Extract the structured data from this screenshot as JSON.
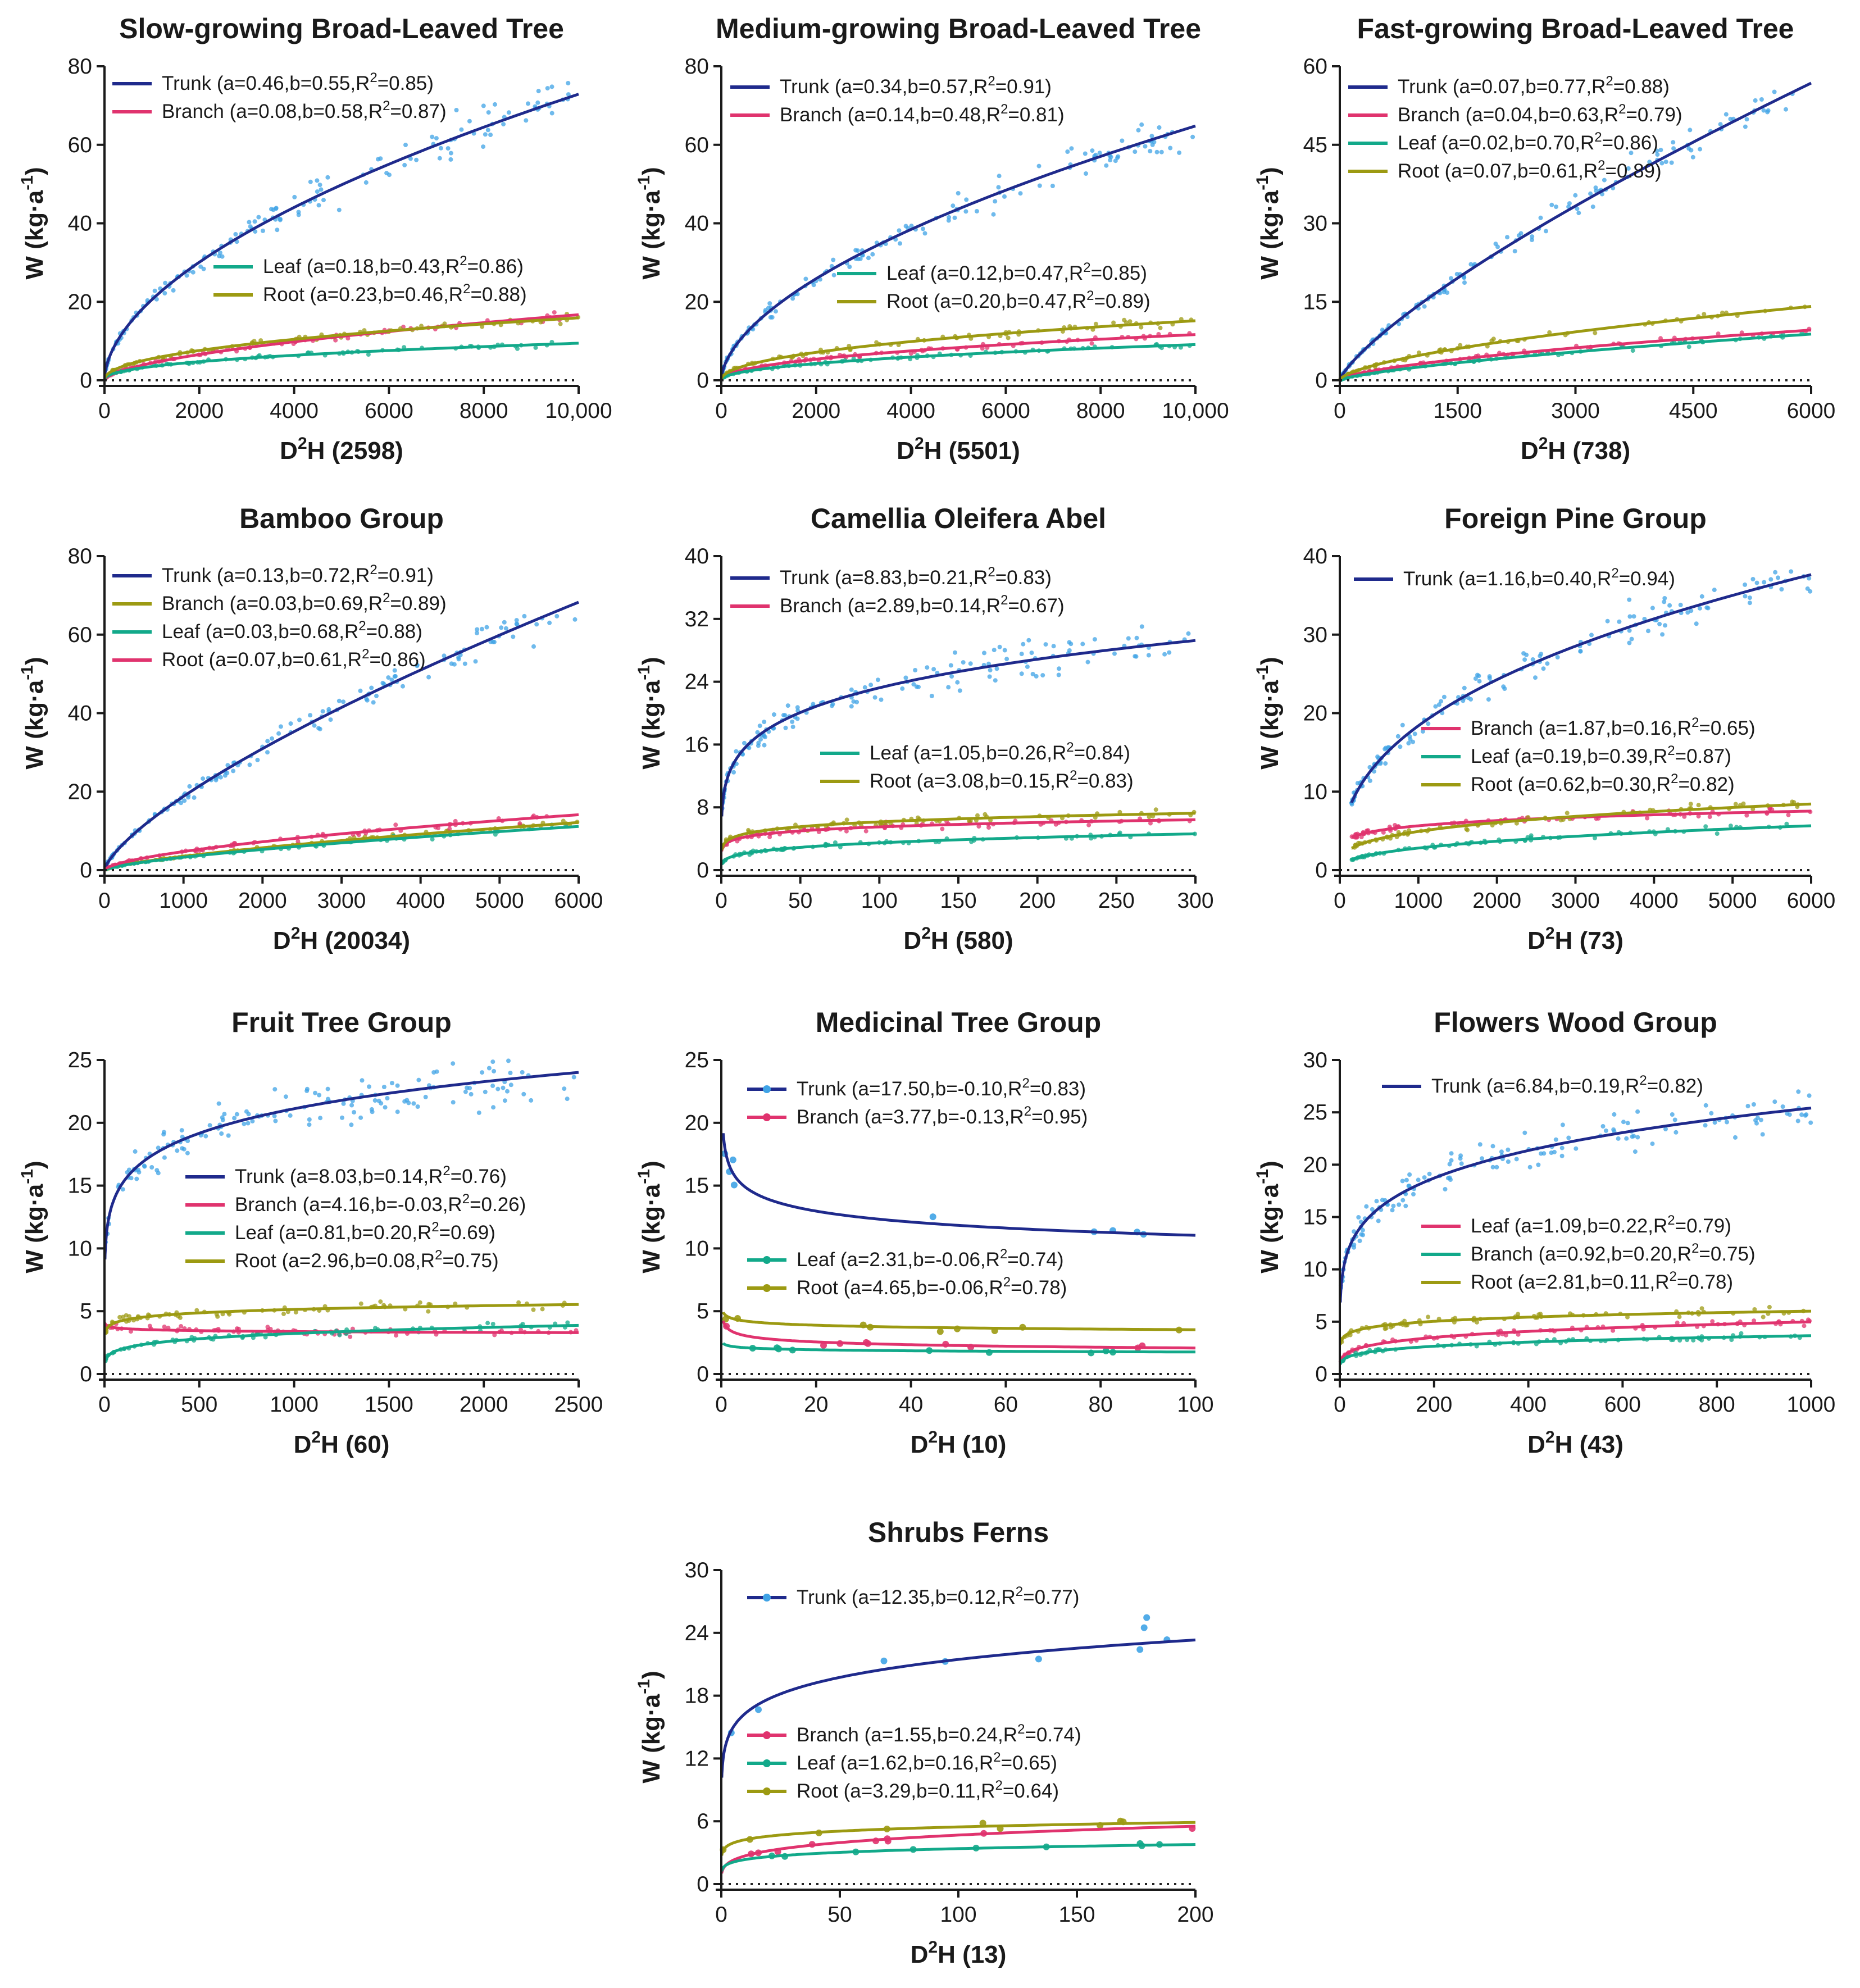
{
  "colors": {
    "trunk": "#1f2a8c",
    "trunk_points": "#3fa3e6",
    "branch": "#e0336e",
    "leaf": "#12a98a",
    "root": "#9c9a12"
  },
  "chart_data": [
    {
      "type": "scatter",
      "title": "Slow-growing Broad-Leaved Tree",
      "xlabel": "D",
      "xlabel_sup": "2",
      "xlabel_rest": "H (2598)",
      "ylabel": "W (kg·a",
      "ylabel_sup": "-1",
      "ylabel_end": ")",
      "xlim": [
        0,
        10000
      ],
      "ylim": [
        0,
        80
      ],
      "xticks": [
        0,
        2000,
        4000,
        6000,
        8000,
        10000
      ],
      "xtick_labels": [
        "0",
        "2000",
        "4000",
        "6000",
        "8000",
        "10,000"
      ],
      "yticks": [
        0,
        20,
        40,
        60,
        80
      ],
      "ytick_labels": [
        "0",
        "20",
        "40",
        "60",
        "80"
      ],
      "series": [
        {
          "name": "Trunk",
          "key": "trunk",
          "a": 0.46,
          "b": 0.55,
          "r2": 0.85,
          "label": "Trunk (a=0.46,b=0.55,R",
          "r2_text": "=0.85)"
        },
        {
          "name": "Branch",
          "key": "branch",
          "a": 0.08,
          "b": 0.58,
          "r2": 0.87,
          "label": "Branch (a=0.08,b=0.58,R",
          "r2_text": "=0.87)"
        },
        {
          "name": "Leaf",
          "key": "leaf",
          "a": 0.18,
          "b": 0.43,
          "r2": 0.86,
          "label": "Leaf (a=0.18,b=0.43,R",
          "r2_text": "=0.86)"
        },
        {
          "name": "Root",
          "key": "root",
          "a": 0.23,
          "b": 0.46,
          "r2": 0.88,
          "label": "Root (a=0.23,b=0.46,R",
          "r2_text": "=0.88)"
        }
      ]
    },
    {
      "type": "scatter",
      "title": "Medium-growing Broad-Leaved Tree",
      "xlabel": "D",
      "xlabel_sup": "2",
      "xlabel_rest": "H (5501)",
      "ylabel": "W (kg·a",
      "ylabel_sup": "-1",
      "ylabel_end": ")",
      "xlim": [
        0,
        10000
      ],
      "ylim": [
        0,
        80
      ],
      "xticks": [
        0,
        2000,
        4000,
        6000,
        8000,
        10000
      ],
      "xtick_labels": [
        "0",
        "2000",
        "4000",
        "6000",
        "8000",
        "10,000"
      ],
      "yticks": [
        0,
        20,
        40,
        60,
        80
      ],
      "ytick_labels": [
        "0",
        "20",
        "40",
        "60",
        "80"
      ],
      "series": [
        {
          "name": "Trunk",
          "key": "trunk",
          "a": 0.34,
          "b": 0.57,
          "r2": 0.91,
          "label": "Trunk (a=0.34,b=0.57,R",
          "r2_text": "=0.91)"
        },
        {
          "name": "Branch",
          "key": "branch",
          "a": 0.14,
          "b": 0.48,
          "r2": 0.81,
          "label": "Branch (a=0.14,b=0.48,R",
          "r2_text": "=0.81)"
        },
        {
          "name": "Leaf",
          "key": "leaf",
          "a": 0.12,
          "b": 0.47,
          "r2": 0.85,
          "label": "Leaf (a=0.12,b=0.47,R",
          "r2_text": "=0.85)"
        },
        {
          "name": "Root",
          "key": "root",
          "a": 0.2,
          "b": 0.47,
          "r2": 0.89,
          "label": "Root (a=0.20,b=0.47,R",
          "r2_text": "=0.89)"
        }
      ]
    },
    {
      "type": "scatter",
      "title": "Fast-growing Broad-Leaved Tree",
      "xlabel": "D",
      "xlabel_sup": "2",
      "xlabel_rest": "H (738)",
      "ylabel": "W (kg·a",
      "ylabel_sup": "-1",
      "ylabel_end": ")",
      "xlim": [
        0,
        6000
      ],
      "ylim": [
        0,
        60
      ],
      "xticks": [
        0,
        1500,
        3000,
        4500,
        6000
      ],
      "xtick_labels": [
        "0",
        "1500",
        "3000",
        "4500",
        "6000"
      ],
      "yticks": [
        0,
        15,
        30,
        45,
        60
      ],
      "ytick_labels": [
        "0",
        "15",
        "30",
        "45",
        "60"
      ],
      "series": [
        {
          "name": "Trunk",
          "key": "trunk",
          "a": 0.07,
          "b": 0.77,
          "r2": 0.88,
          "label": "Trunk (a=0.07,b=0.77,R",
          "r2_text": "=0.88)"
        },
        {
          "name": "Branch",
          "key": "branch",
          "a": 0.04,
          "b": 0.63,
          "r2": 0.79,
          "label": "Branch (a=0.04,b=0.63,R",
          "r2_text": "=0.79)"
        },
        {
          "name": "Leaf",
          "key": "leaf",
          "a": 0.02,
          "b": 0.7,
          "r2": 0.86,
          "label": "Leaf (a=0.02,b=0.70,R",
          "r2_text": "=0.86)"
        },
        {
          "name": "Root",
          "key": "root",
          "a": 0.07,
          "b": 0.61,
          "r2": 0.89,
          "label": "Root (a=0.07,b=0.61,R",
          "r2_text": "=0.89)"
        }
      ]
    },
    {
      "type": "scatter",
      "title": "Bamboo Group",
      "xlabel": "D",
      "xlabel_sup": "2",
      "xlabel_rest": "H (20034)",
      "ylabel": "W (kg·a",
      "ylabel_sup": "-1",
      "ylabel_end": ")",
      "xlim": [
        0,
        6000
      ],
      "ylim": [
        0,
        80
      ],
      "xticks": [
        0,
        1000,
        2000,
        3000,
        4000,
        5000,
        6000
      ],
      "xtick_labels": [
        "0",
        "1000",
        "2000",
        "3000",
        "4000",
        "5000",
        "6000"
      ],
      "yticks": [
        0,
        20,
        40,
        60,
        80
      ],
      "ytick_labels": [
        "0",
        "20",
        "40",
        "60",
        "80"
      ],
      "series": [
        {
          "name": "Trunk",
          "key": "trunk",
          "a": 0.13,
          "b": 0.72,
          "r2": 0.91,
          "label": "Trunk (a=0.13,b=0.72,R",
          "r2_text": "=0.91)"
        },
        {
          "name": "Branch",
          "key": "root",
          "a": 0.03,
          "b": 0.69,
          "r2": 0.89,
          "label": "Branch (a=0.03,b=0.69,R",
          "r2_text": "=0.89)"
        },
        {
          "name": "Leaf",
          "key": "leaf",
          "a": 0.03,
          "b": 0.68,
          "r2": 0.88,
          "label": "Leaf (a=0.03,b=0.68,R",
          "r2_text": "=0.88)"
        },
        {
          "name": "Root",
          "key": "branch",
          "a": 0.07,
          "b": 0.61,
          "r2": 0.86,
          "label": "Root (a=0.07,b=0.61,R",
          "r2_text": "=0.86)"
        }
      ]
    },
    {
      "type": "scatter",
      "title": "Camellia Oleifera Abel",
      "xlabel": "D",
      "xlabel_sup": "2",
      "xlabel_rest": "H (580)",
      "ylabel": "W (kg·a",
      "ylabel_sup": "-1",
      "ylabel_end": ")",
      "xlim": [
        0,
        300
      ],
      "ylim": [
        0,
        40
      ],
      "xticks": [
        0,
        50,
        100,
        150,
        200,
        250,
        300
      ],
      "xtick_labels": [
        "0",
        "50",
        "100",
        "150",
        "200",
        "250",
        "300"
      ],
      "yticks": [
        0,
        8,
        16,
        24,
        32,
        40
      ],
      "ytick_labels": [
        "0",
        "8",
        "16",
        "24",
        "32",
        "40"
      ],
      "series": [
        {
          "name": "Trunk",
          "key": "trunk",
          "a": 8.83,
          "b": 0.21,
          "r2": 0.83,
          "label": "Trunk (a=8.83,b=0.21,R",
          "r2_text": "=0.83)"
        },
        {
          "name": "Branch",
          "key": "branch",
          "a": 2.89,
          "b": 0.14,
          "r2": 0.67,
          "label": "Branch (a=2.89,b=0.14,R",
          "r2_text": "=0.67)"
        },
        {
          "name": "Leaf",
          "key": "leaf",
          "a": 1.05,
          "b": 0.26,
          "r2": 0.84,
          "label": "Leaf (a=1.05,b=0.26,R",
          "r2_text": "=0.84)"
        },
        {
          "name": "Root",
          "key": "root",
          "a": 3.08,
          "b": 0.15,
          "r2": 0.83,
          "label": "Root (a=3.08,b=0.15,R",
          "r2_text": "=0.83)"
        }
      ]
    },
    {
      "type": "scatter",
      "title": "Foreign Pine Group",
      "xlabel": "D",
      "xlabel_sup": "2",
      "xlabel_rest": "H (73)",
      "ylabel": "W (kg·a",
      "ylabel_sup": "-1",
      "ylabel_end": ")",
      "xlim": [
        0,
        6000
      ],
      "ylim": [
        0,
        40
      ],
      "xmin_data": 150,
      "xticks": [
        0,
        1000,
        2000,
        3000,
        4000,
        5000,
        6000
      ],
      "xtick_labels": [
        "0",
        "1000",
        "2000",
        "3000",
        "4000",
        "5000",
        "6000"
      ],
      "yticks": [
        0,
        10,
        20,
        30,
        40
      ],
      "ytick_labels": [
        "0",
        "10",
        "20",
        "30",
        "40"
      ],
      "series": [
        {
          "name": "Trunk",
          "key": "trunk",
          "a": 1.16,
          "b": 0.4,
          "r2": 0.94,
          "label": "Trunk (a=1.16,b=0.40,R",
          "r2_text": "=0.94)"
        },
        {
          "name": "Branch",
          "key": "branch",
          "a": 1.87,
          "b": 0.16,
          "r2": 0.65,
          "label": "Branch (a=1.87,b=0.16,R",
          "r2_text": "=0.65)"
        },
        {
          "name": "Leaf",
          "key": "leaf",
          "a": 0.19,
          "b": 0.39,
          "r2": 0.87,
          "label": "Leaf (a=0.19,b=0.39,R",
          "r2_text": "=0.87)"
        },
        {
          "name": "Root",
          "key": "root",
          "a": 0.62,
          "b": 0.3,
          "r2": 0.82,
          "label": "Root (a=0.62,b=0.30,R",
          "r2_text": "=0.82)"
        }
      ]
    },
    {
      "type": "scatter",
      "title": "Fruit Tree Group",
      "xlabel": "D",
      "xlabel_sup": "2",
      "xlabel_rest": "H (60)",
      "ylabel": "W (kg·a",
      "ylabel_sup": "-1",
      "ylabel_end": ")",
      "xlim": [
        0,
        2500
      ],
      "ylim": [
        0,
        25
      ],
      "xticks": [
        0,
        500,
        1000,
        1500,
        2000,
        2500
      ],
      "xtick_labels": [
        "0",
        "500",
        "1000",
        "1500",
        "2000",
        "2500"
      ],
      "yticks": [
        0,
        5,
        10,
        15,
        20,
        25
      ],
      "ytick_labels": [
        "0",
        "5",
        "10",
        "15",
        "20",
        "25"
      ],
      "series": [
        {
          "name": "Trunk",
          "key": "trunk",
          "a": 8.03,
          "b": 0.14,
          "r2": 0.76,
          "label": "Trunk (a=8.03,b=0.14,R",
          "r2_text": "=0.76)"
        },
        {
          "name": "Branch",
          "key": "branch",
          "a": 4.16,
          "b": -0.03,
          "r2": 0.26,
          "label": "Branch (a=4.16,b=-0.03,R",
          "r2_text": "=0.26)"
        },
        {
          "name": "Leaf",
          "key": "leaf",
          "a": 0.81,
          "b": 0.2,
          "r2": 0.69,
          "label": "Leaf (a=0.81,b=0.20,R",
          "r2_text": "=0.69)"
        },
        {
          "name": "Root",
          "key": "root",
          "a": 2.96,
          "b": 0.08,
          "r2": 0.75,
          "label": "Root (a=2.96,b=0.08,R",
          "r2_text": "=0.75)"
        }
      ]
    },
    {
      "type": "scatter",
      "title": "Medicinal Tree Group",
      "xlabel": "D",
      "xlabel_sup": "2",
      "xlabel_rest": "H (10)",
      "ylabel": "W (kg·a",
      "ylabel_sup": "-1",
      "ylabel_end": ")",
      "xlim": [
        0,
        100
      ],
      "ylim": [
        0,
        25
      ],
      "xmin_data": 0.4,
      "dot_markers": true,
      "xticks": [
        0,
        20,
        40,
        60,
        80,
        100
      ],
      "xtick_labels": [
        "0",
        "20",
        "40",
        "60",
        "80",
        "100"
      ],
      "yticks": [
        0,
        5,
        10,
        15,
        20,
        25
      ],
      "ytick_labels": [
        "0",
        "5",
        "10",
        "15",
        "20",
        "25"
      ],
      "series": [
        {
          "name": "Trunk",
          "key": "trunk",
          "a": 17.5,
          "b": -0.1,
          "r2": 0.83,
          "label": "Trunk (a=17.50,b=-0.10,R",
          "r2_text": "=0.83)"
        },
        {
          "name": "Branch",
          "key": "branch",
          "a": 3.77,
          "b": -0.13,
          "r2": 0.95,
          "label": "Branch (a=3.77,b=-0.13,R",
          "r2_text": "=0.95)"
        },
        {
          "name": "Leaf",
          "key": "leaf",
          "a": 2.31,
          "b": -0.06,
          "r2": 0.74,
          "label": "Leaf (a=2.31,b=-0.06,R",
          "r2_text": "=0.74)"
        },
        {
          "name": "Root",
          "key": "root",
          "a": 4.65,
          "b": -0.06,
          "r2": 0.78,
          "label": "Root (a=4.65,b=-0.06,R",
          "r2_text": "=0.78)"
        }
      ]
    },
    {
      "type": "scatter",
      "title": "Flowers Wood Group",
      "xlabel": "D",
      "xlabel_sup": "2",
      "xlabel_rest": "H (43)",
      "ylabel": "W (kg·a",
      "ylabel_sup": "-1",
      "ylabel_end": ")",
      "xlim": [
        0,
        1000
      ],
      "ylim": [
        0,
        30
      ],
      "xticks": [
        0,
        200,
        400,
        600,
        800,
        1000
      ],
      "xtick_labels": [
        "0",
        "200",
        "400",
        "600",
        "800",
        "1000"
      ],
      "yticks": [
        0,
        5,
        10,
        15,
        20,
        25,
        30
      ],
      "ytick_labels": [
        "0",
        "5",
        "10",
        "15",
        "20",
        "25",
        "30"
      ],
      "series": [
        {
          "name": "Trunk",
          "key": "trunk",
          "a": 6.84,
          "b": 0.19,
          "r2": 0.82,
          "label": "Trunk (a=6.84,b=0.19,R",
          "r2_text": "=0.82)"
        },
        {
          "name": "Leaf",
          "key": "branch",
          "a": 1.09,
          "b": 0.22,
          "r2": 0.79,
          "label": "Leaf (a=1.09,b=0.22,R",
          "r2_text": "=0.79)"
        },
        {
          "name": "Branch",
          "key": "leaf",
          "a": 0.92,
          "b": 0.2,
          "r2": 0.75,
          "label": "Branch (a=0.92,b=0.20,R",
          "r2_text": "=0.75)"
        },
        {
          "name": "Root",
          "key": "root",
          "a": 2.81,
          "b": 0.11,
          "r2": 0.78,
          "label": "Root (a=2.81,b=0.11,R",
          "r2_text": "=0.78)"
        }
      ]
    },
    {
      "type": "scatter",
      "title": "Shrubs Ferns",
      "xlabel": "D",
      "xlabel_sup": "2",
      "xlabel_rest": "H (13)",
      "ylabel": "W (kg·a",
      "ylabel_sup": "-1",
      "ylabel_end": ")",
      "xlim": [
        0,
        200
      ],
      "ylim": [
        0,
        30
      ],
      "dot_markers": true,
      "xticks": [
        0,
        50,
        100,
        150,
        200
      ],
      "xtick_labels": [
        "0",
        "50",
        "100",
        "150",
        "200"
      ],
      "yticks": [
        0,
        6,
        12,
        18,
        24,
        30
      ],
      "ytick_labels": [
        "0",
        "6",
        "12",
        "18",
        "24",
        "30"
      ],
      "series": [
        {
          "name": "Trunk",
          "key": "trunk",
          "a": 12.35,
          "b": 0.12,
          "r2": 0.77,
          "label": "Trunk (a=12.35,b=0.12,R",
          "r2_text": "=0.77)"
        },
        {
          "name": "Branch",
          "key": "branch",
          "a": 1.55,
          "b": 0.24,
          "r2": 0.74,
          "label": "Branch (a=1.55,b=0.24,R",
          "r2_text": "=0.74)"
        },
        {
          "name": "Leaf",
          "key": "leaf",
          "a": 1.62,
          "b": 0.16,
          "r2": 0.65,
          "label": "Leaf (a=1.62,b=0.16,R",
          "r2_text": "=0.65)"
        },
        {
          "name": "Root",
          "key": "root",
          "a": 3.29,
          "b": 0.11,
          "r2": 0.64,
          "label": "Root (a=3.29,b=0.11,R",
          "r2_text": "=0.64)"
        }
      ]
    }
  ]
}
